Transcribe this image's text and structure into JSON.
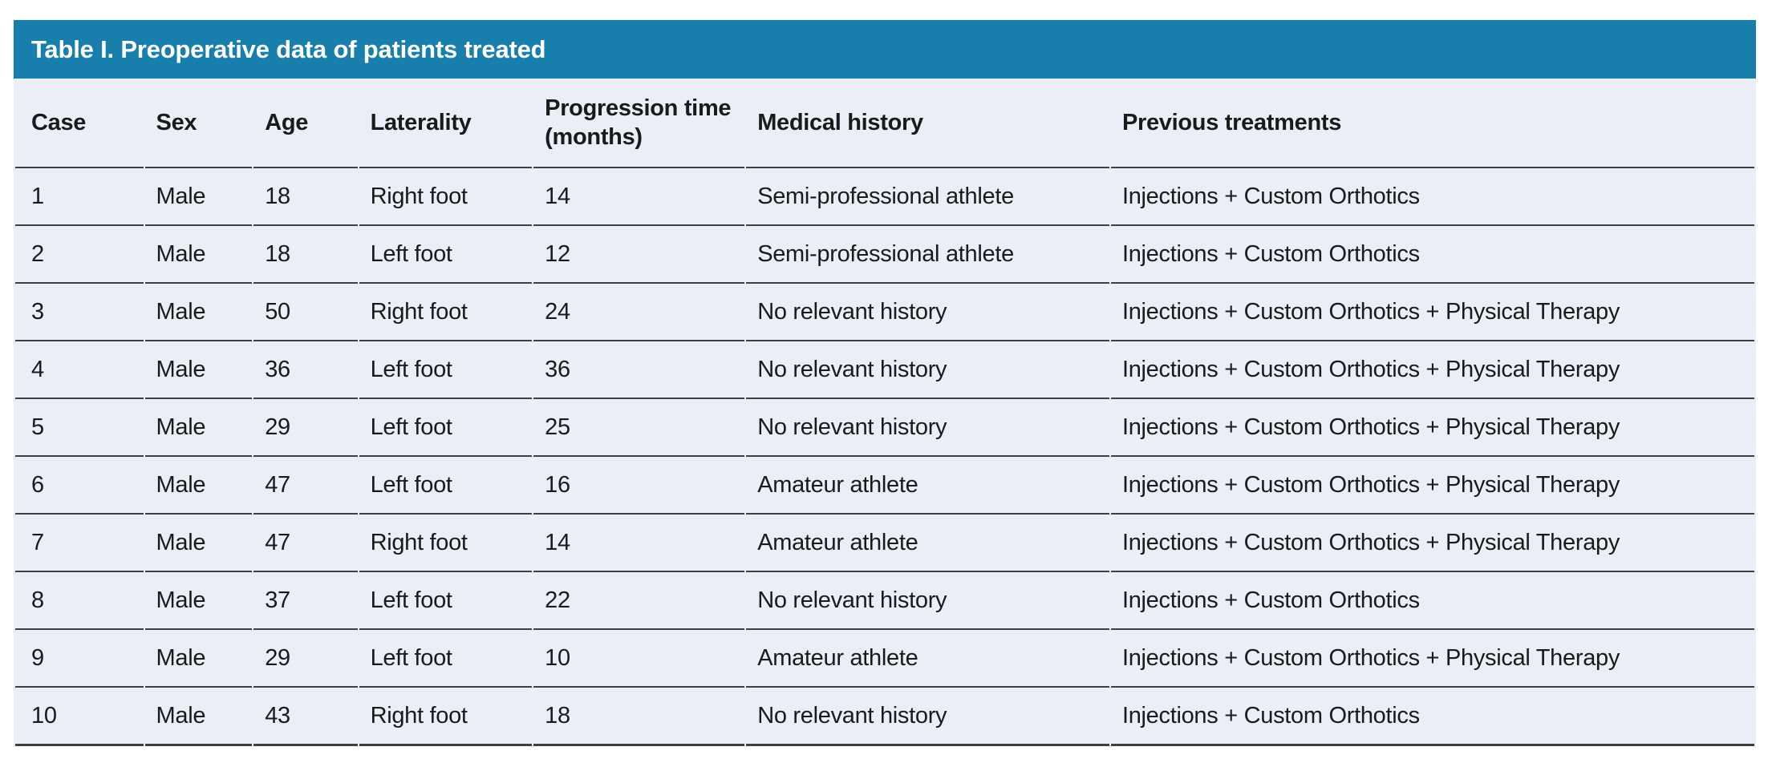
{
  "table": {
    "title": "Table I. Preoperative data of patients treated",
    "columns": [
      "Case",
      "Sex",
      "Age",
      "Laterality",
      "Progression time (months)",
      "Medical history",
      "Previous treatments"
    ],
    "rows": [
      [
        "1",
        "Male",
        "18",
        "Right foot",
        "14",
        "Semi-professional athlete",
        "Injections + Custom Orthotics"
      ],
      [
        "2",
        "Male",
        "18",
        "Left foot",
        "12",
        "Semi-professional athlete",
        "Injections + Custom Orthotics"
      ],
      [
        "3",
        "Male",
        "50",
        "Right foot",
        "24",
        "No relevant history",
        "Injections + Custom Orthotics + Physical Therapy"
      ],
      [
        "4",
        "Male",
        "36",
        "Left foot",
        "36",
        "No relevant history",
        "Injections + Custom Orthotics + Physical Therapy"
      ],
      [
        "5",
        "Male",
        "29",
        "Left foot",
        "25",
        "No relevant history",
        "Injections + Custom Orthotics + Physical Therapy"
      ],
      [
        "6",
        "Male",
        "47",
        "Left foot",
        "16",
        "Amateur athlete",
        "Injections + Custom Orthotics + Physical Therapy"
      ],
      [
        "7",
        "Male",
        "47",
        "Right foot",
        "14",
        "Amateur athlete",
        "Injections + Custom Orthotics + Physical Therapy"
      ],
      [
        "8",
        "Male",
        "37",
        "Left foot",
        "22",
        "No relevant history",
        "Injections + Custom Orthotics"
      ],
      [
        "9",
        "Male",
        "29",
        "Left foot",
        "10",
        "Amateur athlete",
        "Injections + Custom Orthotics + Physical Therapy"
      ],
      [
        "10",
        "Male",
        "43",
        "Right foot",
        "18",
        "No relevant history",
        "Injections + Custom Orthotics"
      ]
    ],
    "colors": {
      "title_bar_background": "#187FAC",
      "title_text": "#FFFFFF",
      "table_background": "#E9EEF7",
      "row_separator": "#3F3F3F",
      "body_text": "#1A1A1A",
      "page_background": "#FFFFFF"
    }
  }
}
